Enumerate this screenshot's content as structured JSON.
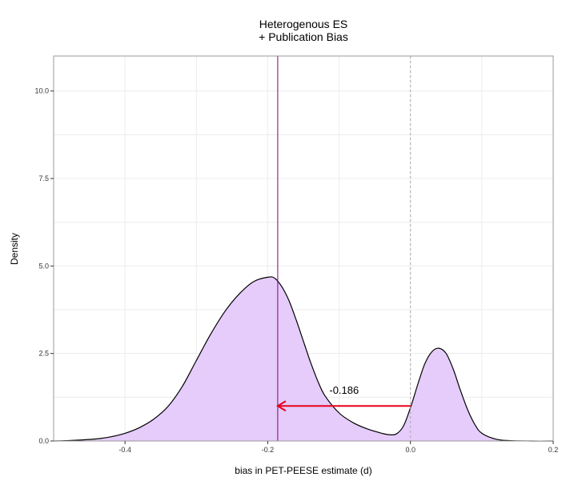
{
  "chart_data": {
    "type": "area",
    "title_lines": [
      "Heterogenous ES",
      "+ Publication Bias"
    ],
    "xlabel": "bias in PET-PEESE estimate (d)",
    "ylabel": "Density",
    "xlim": [
      -0.5,
      0.2
    ],
    "ylim": [
      0,
      11
    ],
    "x_ticks": [
      -0.4,
      -0.2,
      0.0,
      0.2
    ],
    "x_tick_labels": [
      "-0.4",
      "-0.2",
      "0.0",
      "0.2"
    ],
    "y_ticks": [
      0,
      2.5,
      5,
      7.5,
      10
    ],
    "y_tick_labels": [
      "0.0",
      "2.5",
      "5.0",
      "7.5",
      "10.0"
    ],
    "grid": true,
    "series": [
      {
        "x": [
          -0.5,
          -0.47,
          -0.44,
          -0.42,
          -0.4,
          -0.38,
          -0.36,
          -0.34,
          -0.32,
          -0.3,
          -0.28,
          -0.26,
          -0.24,
          -0.22,
          -0.2,
          -0.19,
          -0.18,
          -0.17,
          -0.16,
          -0.15,
          -0.14,
          -0.13,
          -0.12,
          -0.1,
          -0.08,
          -0.06,
          -0.04,
          -0.03,
          -0.02,
          -0.01,
          0.0,
          0.01,
          0.02,
          0.03,
          0.04,
          0.05,
          0.06,
          0.07,
          0.08,
          0.09,
          0.1,
          0.12,
          0.14,
          0.17,
          0.2
        ],
        "y": [
          0.0,
          0.02,
          0.06,
          0.12,
          0.22,
          0.38,
          0.62,
          0.98,
          1.55,
          2.3,
          3.05,
          3.7,
          4.2,
          4.55,
          4.68,
          4.65,
          4.4,
          4.0,
          3.45,
          2.85,
          2.25,
          1.72,
          1.3,
          0.8,
          0.52,
          0.34,
          0.22,
          0.18,
          0.2,
          0.42,
          0.95,
          1.6,
          2.2,
          2.55,
          2.65,
          2.5,
          2.05,
          1.45,
          0.9,
          0.48,
          0.22,
          0.05,
          0.01,
          0.0,
          0.0
        ],
        "fill": "#e5ccfa",
        "stroke": "#000000"
      }
    ],
    "reference_lines": [
      {
        "x": -0.186,
        "color": "#800080",
        "style": "solid"
      },
      {
        "x": 0.0,
        "color": "#aaaaaa",
        "style": "dashed"
      }
    ],
    "arrow": {
      "x_from": 0.0,
      "x_to": -0.186,
      "y": 1.0,
      "color": "#e8001c"
    },
    "annotation": {
      "text": "-0.186",
      "x": -0.093,
      "y": 1.35
    }
  }
}
